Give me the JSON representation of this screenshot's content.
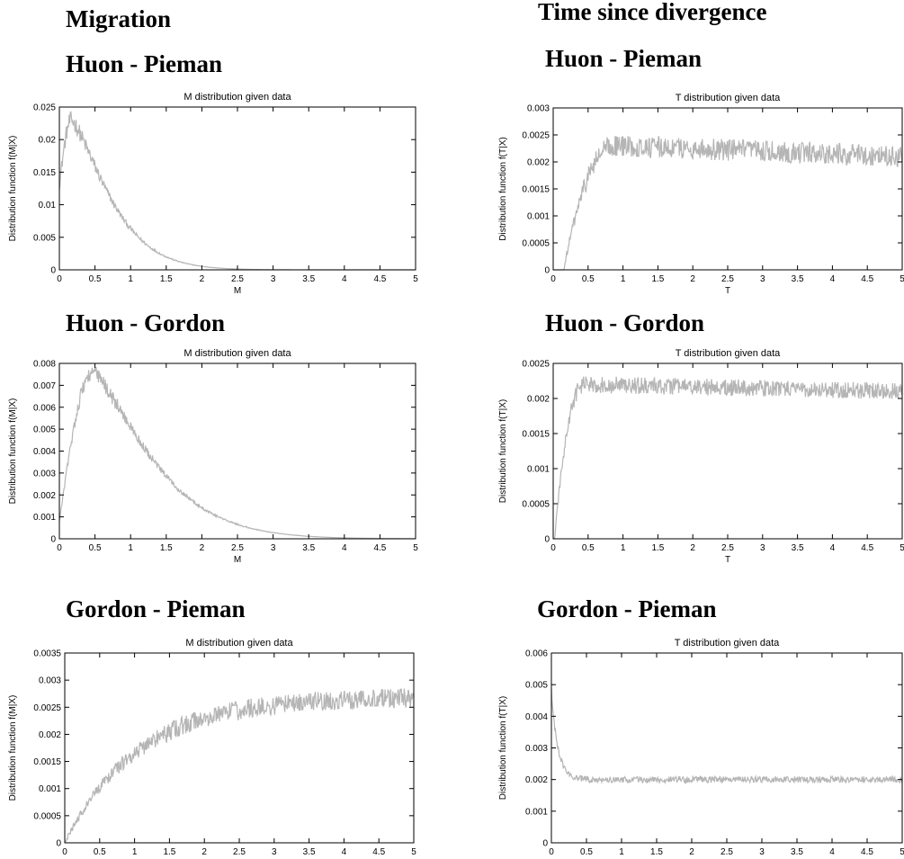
{
  "column_headings": [
    "Migration",
    "Time since divergence"
  ],
  "section_headings": [
    "Huon - Pieman",
    "Huon - Pieman",
    "Huon - Gordon",
    "Huon - Gordon",
    "Gordon - Pieman",
    "Gordon - Pieman"
  ],
  "line_color": "#b5b5b5",
  "chart_data": [
    {
      "type": "line",
      "title": "M distribution given data",
      "xlabel": "M",
      "ylabel": "Distribution function f(M|X)",
      "xlim": [
        0,
        5
      ],
      "ylim": [
        0,
        0.025
      ],
      "xticks": [
        "0",
        "0.5",
        "1",
        "1.5",
        "2",
        "2.5",
        "3",
        "3.5",
        "4",
        "4.5",
        "5"
      ],
      "yticks": [
        "0",
        "0.005",
        "0.01",
        "0.015",
        "0.02",
        "0.025"
      ],
      "grid": false,
      "curve": {
        "shape": "peak",
        "x_peak": 0.17,
        "y_peak": 0.023,
        "y_start": 0.013,
        "decay": 1.25,
        "noise": 0.03
      },
      "points": [
        [
          0,
          0.013
        ],
        [
          0.05,
          0.018
        ],
        [
          0.1,
          0.021
        ],
        [
          0.17,
          0.023
        ],
        [
          0.25,
          0.022
        ],
        [
          0.35,
          0.019
        ],
        [
          0.5,
          0.013
        ],
        [
          0.7,
          0.007
        ],
        [
          1,
          0.0018
        ],
        [
          1.3,
          0.0005
        ],
        [
          1.5,
          0.0002
        ],
        [
          2,
          0
        ],
        [
          5,
          0
        ]
      ]
    },
    {
      "type": "line",
      "title": "T distribution given data",
      "xlabel": "T",
      "ylabel": "Distribution function f(T|X)",
      "xlim": [
        0,
        5
      ],
      "ylim": [
        0,
        0.003
      ],
      "xticks": [
        "0",
        "0.5",
        "1",
        "1.5",
        "2",
        "2.5",
        "3",
        "3.5",
        "4",
        "4.5",
        "5"
      ],
      "yticks": [
        "0",
        "0.0005",
        "0.001",
        "0.0015",
        "0.002",
        "0.0025",
        "0.003"
      ],
      "grid": false,
      "curve": {
        "shape": "rise_plateau",
        "x_start": 0.15,
        "x_plateau": 0.9,
        "y_plateau": 0.0023,
        "y_end": 0.0021,
        "noise": 0.0002
      },
      "points": [
        [
          0,
          0
        ],
        [
          0.2,
          0.0001
        ],
        [
          0.4,
          0.0009
        ],
        [
          0.6,
          0.0018
        ],
        [
          0.8,
          0.0022
        ],
        [
          1,
          0.0023
        ],
        [
          1.5,
          0.0024
        ],
        [
          2,
          0.0022
        ],
        [
          3,
          0.0021
        ],
        [
          4,
          0.0021
        ],
        [
          5,
          0.0021
        ]
      ]
    },
    {
      "type": "line",
      "title": "M distribution given data",
      "xlabel": "M",
      "ylabel": "Distribution function f(M|X)",
      "xlim": [
        0,
        5
      ],
      "ylim": [
        0,
        0.008
      ],
      "xticks": [
        "0",
        "0.5",
        "1",
        "1.5",
        "2",
        "2.5",
        "3",
        "3.5",
        "4",
        "4.5",
        "5"
      ],
      "yticks": [
        "0",
        "0.001",
        "0.002",
        "0.003",
        "0.004",
        "0.005",
        "0.006",
        "0.007",
        "0.008"
      ],
      "grid": false,
      "curve": {
        "shape": "peak",
        "x_peak": 0.47,
        "y_peak": 0.0076,
        "y_start": 0.0008,
        "decay": 1.9,
        "noise": 0.025
      },
      "points": [
        [
          0,
          0.0008
        ],
        [
          0.1,
          0.003
        ],
        [
          0.25,
          0.006
        ],
        [
          0.47,
          0.0076
        ],
        [
          0.75,
          0.0068
        ],
        [
          1,
          0.0055
        ],
        [
          1.5,
          0.0033
        ],
        [
          2,
          0.0018
        ],
        [
          2.5,
          0.001
        ],
        [
          3,
          0.0006
        ],
        [
          3.5,
          0.0003
        ],
        [
          4,
          0.0002
        ],
        [
          4.5,
          0.0001
        ],
        [
          5,
          5e-05
        ]
      ]
    },
    {
      "type": "line",
      "title": "T distribution given data",
      "xlabel": "T",
      "ylabel": "Distribution function f(T|X)",
      "xlim": [
        0,
        5
      ],
      "ylim": [
        0,
        0.0025
      ],
      "xticks": [
        "0",
        "0.5",
        "1",
        "1.5",
        "2",
        "2.5",
        "3",
        "3.5",
        "4",
        "4.5",
        "5"
      ],
      "yticks": [
        "0",
        "0.0005",
        "0.001",
        "0.0015",
        "0.002",
        "0.0025"
      ],
      "grid": false,
      "curve": {
        "shape": "rise_plateau",
        "x_start": 0.02,
        "x_plateau": 0.45,
        "y_plateau": 0.0022,
        "y_end": 0.0021,
        "noise": 0.00012
      },
      "points": [
        [
          0,
          0
        ],
        [
          0.1,
          0.0005
        ],
        [
          0.2,
          0.0011
        ],
        [
          0.3,
          0.0016
        ],
        [
          0.45,
          0.0021
        ],
        [
          0.6,
          0.0022
        ],
        [
          1,
          0.0021
        ],
        [
          2,
          0.0021
        ],
        [
          3,
          0.0021
        ],
        [
          4,
          0.0021
        ],
        [
          5,
          0.0021
        ]
      ]
    },
    {
      "type": "line",
      "title": "M distribution given data",
      "xlabel": "M",
      "ylabel": "Distribution function f(M|X)",
      "xlim": [
        0,
        5
      ],
      "ylim": [
        0,
        0.0035
      ],
      "xticks": [
        "0",
        "0.5",
        "1",
        "1.5",
        "2",
        "2.5",
        "3",
        "3.5",
        "4",
        "4.5",
        "5"
      ],
      "yticks": [
        "0",
        "0.0005",
        "0.001",
        "0.0015",
        "0.002",
        "0.0025",
        "0.003",
        "0.0035"
      ],
      "grid": false,
      "curve": {
        "shape": "saturate",
        "y_max": 0.0027,
        "rate": 1.0,
        "noise": 0.00018
      },
      "points": [
        [
          0,
          0
        ],
        [
          0.5,
          0.0005
        ],
        [
          1,
          0.0013
        ],
        [
          1.5,
          0.0019
        ],
        [
          2,
          0.0023
        ],
        [
          2.5,
          0.0024
        ],
        [
          3,
          0.0026
        ],
        [
          3.5,
          0.0027
        ],
        [
          4,
          0.0027
        ],
        [
          4.5,
          0.0027
        ],
        [
          5,
          0.0028
        ]
      ]
    },
    {
      "type": "line",
      "title": "T distribution given data",
      "xlabel": "T",
      "ylabel": "Distribution function f(T|X)",
      "xlim": [
        0,
        5
      ],
      "ylim": [
        0,
        0.006
      ],
      "xticks": [
        "0",
        "0.5",
        "1",
        "1.5",
        "2",
        "2.5",
        "3",
        "3.5",
        "4",
        "4.5",
        "5"
      ],
      "yticks": [
        "0",
        "0.001",
        "0.002",
        "0.003",
        "0.004",
        "0.005",
        "0.006"
      ],
      "grid": false,
      "curve": {
        "shape": "decay_plateau",
        "y_start": 0.0048,
        "y_plateau": 0.002,
        "rate": 11,
        "noise": 0.0001
      },
      "points": [
        [
          0,
          0.0048
        ],
        [
          0.05,
          0.0035
        ],
        [
          0.1,
          0.0027
        ],
        [
          0.2,
          0.0022
        ],
        [
          0.3,
          0.0021
        ],
        [
          0.5,
          0.002
        ],
        [
          1,
          0.002
        ],
        [
          2,
          0.002
        ],
        [
          3,
          0.002
        ],
        [
          4,
          0.002
        ],
        [
          5,
          0.0019
        ]
      ]
    }
  ]
}
